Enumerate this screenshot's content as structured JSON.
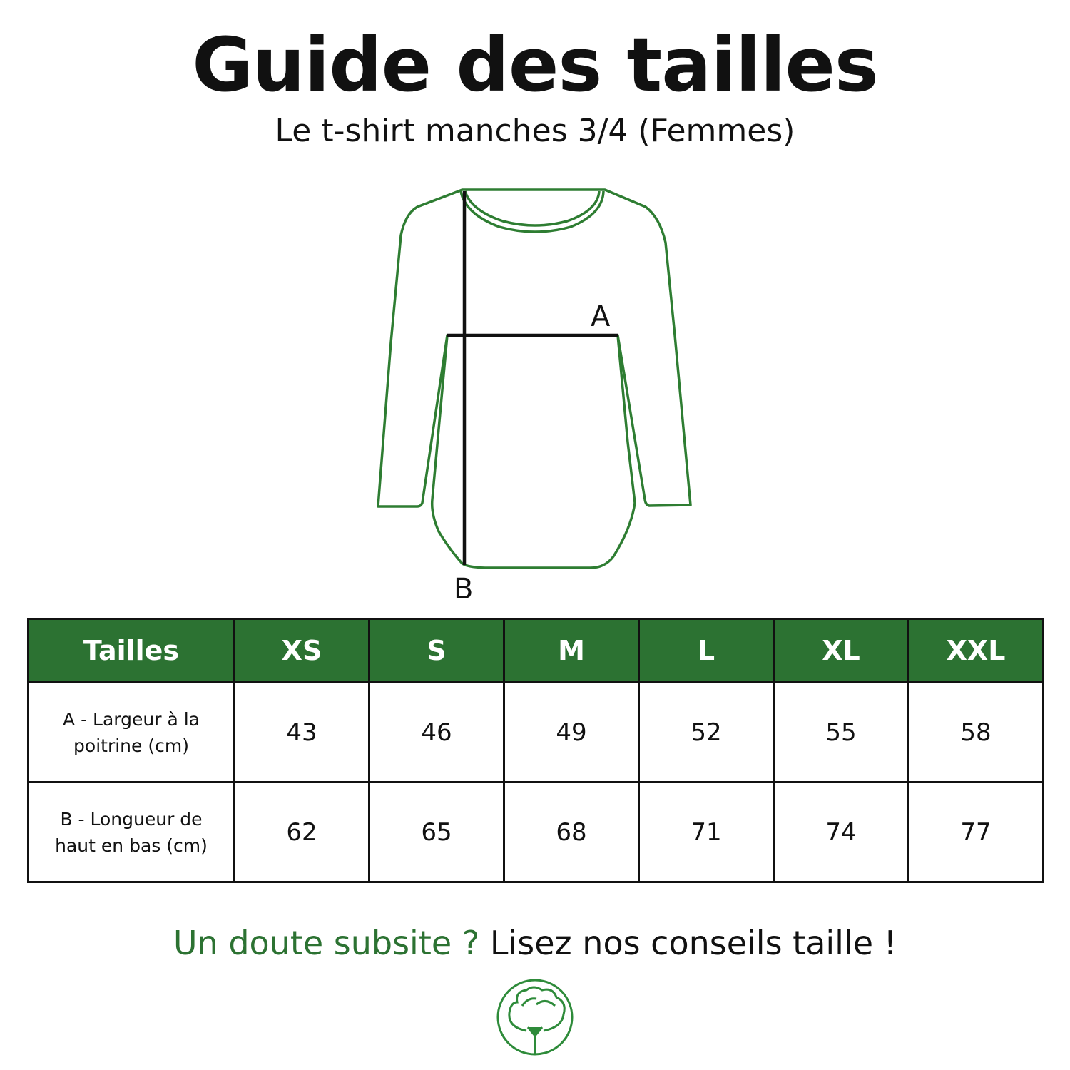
{
  "header": {
    "title": "Guide des tailles",
    "subtitle": "Le t-shirt manches 3/4 (Femmes)"
  },
  "diagram": {
    "label_a": "A",
    "label_b": "B",
    "outline_color": "#2e7d32",
    "measure_color": "#111111"
  },
  "table": {
    "header": [
      "Tailles",
      "XS",
      "S",
      "M",
      "L",
      "XL",
      "XXL"
    ],
    "rows": [
      {
        "label_line1": "A - Largeur à la",
        "label_line2": "poitrine (cm)",
        "values": [
          "43",
          "46",
          "49",
          "52",
          "55",
          "58"
        ]
      },
      {
        "label_line1": "B - Longueur de",
        "label_line2": "haut en bas (cm)",
        "values": [
          "62",
          "65",
          "68",
          "71",
          "74",
          "77"
        ]
      }
    ],
    "header_color": "#2c7232"
  },
  "footer": {
    "question": "Un doute subsite ?",
    "link": "Lisez nos conseils taille !"
  },
  "logo": {
    "icon": "cotton-flower-icon",
    "color": "#2e8b3a"
  }
}
